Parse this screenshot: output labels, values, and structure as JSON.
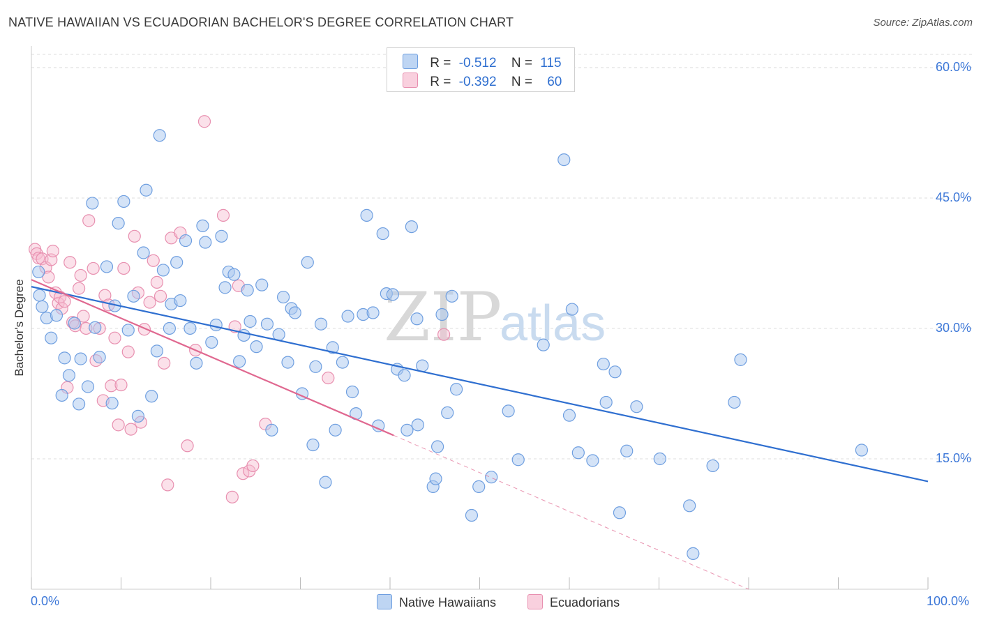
{
  "header": {
    "title": "NATIVE HAWAIIAN VS ECUADORIAN BACHELOR'S DEGREE CORRELATION CHART",
    "source": "Source: ZipAtlas.com"
  },
  "colors": {
    "blue_fill": "#a9c8ef",
    "blue_stroke": "#6f9fe0",
    "blue_line": "#2f6fd0",
    "pink_fill": "#f6bcd0",
    "pink_stroke": "#e890b0",
    "pink_line": "#e06890",
    "axis_text": "#3d78d8",
    "grid": "#dddddd"
  },
  "legend_top": {
    "blue": {
      "r_label": "R =",
      "r_value": "-0.512",
      "n_label": "N =",
      "n_value": "115"
    },
    "pink": {
      "r_label": "R =",
      "r_value": "-0.392",
      "n_label": "N =",
      "n_value": "60"
    }
  },
  "legend_bottom": {
    "blue_label": "Native Hawaiians",
    "pink_label": "Ecuadorians"
  },
  "watermark": {
    "zip": "ZIP",
    "atlas": "atlas"
  },
  "chart_data": {
    "type": "scatter",
    "title": "NATIVE HAWAIIAN VS ECUADORIAN BACHELOR'S DEGREE CORRELATION CHART",
    "xlabel": "",
    "ylabel": "Bachelor's Degree",
    "xlim": [
      0,
      100
    ],
    "ylim": [
      0,
      62
    ],
    "x_tick_labels": [
      "0.0%",
      "100.0%"
    ],
    "y_ticks": [
      15,
      30,
      45,
      60
    ],
    "y_tick_labels": [
      "15.0%",
      "30.0%",
      "45.0%",
      "60.0%"
    ],
    "series": [
      {
        "name": "Native Hawaiians",
        "R": -0.512,
        "N": 115,
        "trend": {
          "x": [
            0,
            100
          ],
          "y": [
            34.8,
            12.4
          ],
          "dashed_from": null
        },
        "points": [
          [
            0.8,
            36.5
          ],
          [
            0.9,
            33.8
          ],
          [
            1.2,
            32.5
          ],
          [
            1.7,
            31.2
          ],
          [
            2.2,
            28.9
          ],
          [
            2.8,
            31.5
          ],
          [
            3.4,
            22.3
          ],
          [
            3.7,
            26.6
          ],
          [
            4.2,
            24.6
          ],
          [
            4.8,
            30.6
          ],
          [
            5.3,
            21.3
          ],
          [
            5.5,
            26.5
          ],
          [
            6.3,
            23.3
          ],
          [
            6.8,
            44.4
          ],
          [
            7.1,
            30.1
          ],
          [
            7.6,
            26.7
          ],
          [
            8.4,
            37.1
          ],
          [
            9.0,
            21.4
          ],
          [
            9.3,
            32.6
          ],
          [
            9.7,
            42.1
          ],
          [
            10.3,
            44.6
          ],
          [
            10.8,
            29.8
          ],
          [
            11.4,
            33.7
          ],
          [
            11.9,
            19.9
          ],
          [
            12.5,
            38.7
          ],
          [
            12.8,
            45.9
          ],
          [
            13.4,
            22.2
          ],
          [
            14.0,
            27.4
          ],
          [
            14.3,
            52.2
          ],
          [
            14.7,
            36.7
          ],
          [
            15.4,
            30.0
          ],
          [
            15.6,
            32.8
          ],
          [
            16.2,
            37.6
          ],
          [
            16.6,
            33.2
          ],
          [
            17.2,
            40.1
          ],
          [
            17.7,
            30.0
          ],
          [
            18.4,
            26.0
          ],
          [
            19.1,
            41.8
          ],
          [
            19.4,
            39.9
          ],
          [
            20.1,
            28.4
          ],
          [
            20.6,
            30.4
          ],
          [
            21.2,
            40.6
          ],
          [
            21.6,
            34.7
          ],
          [
            22.0,
            36.5
          ],
          [
            22.6,
            36.2
          ],
          [
            23.2,
            26.2
          ],
          [
            23.7,
            29.2
          ],
          [
            24.1,
            34.4
          ],
          [
            24.4,
            30.8
          ],
          [
            25.1,
            27.9
          ],
          [
            25.7,
            35.0
          ],
          [
            26.3,
            30.5
          ],
          [
            26.8,
            18.3
          ],
          [
            27.6,
            29.3
          ],
          [
            28.1,
            33.6
          ],
          [
            28.6,
            26.1
          ],
          [
            29.0,
            32.3
          ],
          [
            29.4,
            31.8
          ],
          [
            30.2,
            22.5
          ],
          [
            30.8,
            37.6
          ],
          [
            31.4,
            16.6
          ],
          [
            31.7,
            25.6
          ],
          [
            32.3,
            30.5
          ],
          [
            32.8,
            12.3
          ],
          [
            33.6,
            27.8
          ],
          [
            33.9,
            18.3
          ],
          [
            34.7,
            26.1
          ],
          [
            35.3,
            31.4
          ],
          [
            35.8,
            22.7
          ],
          [
            36.2,
            20.2
          ],
          [
            37.0,
            31.6
          ],
          [
            37.4,
            43.0
          ],
          [
            38.1,
            31.8
          ],
          [
            38.7,
            18.8
          ],
          [
            39.2,
            40.9
          ],
          [
            39.6,
            34.0
          ],
          [
            40.3,
            33.9
          ],
          [
            40.8,
            25.3
          ],
          [
            41.6,
            24.6
          ],
          [
            41.9,
            18.3
          ],
          [
            42.4,
            41.7
          ],
          [
            43.0,
            31.1
          ],
          [
            43.1,
            18.9
          ],
          [
            43.6,
            25.7
          ],
          [
            44.8,
            11.8
          ],
          [
            45.1,
            12.7
          ],
          [
            45.3,
            16.4
          ],
          [
            45.8,
            31.6
          ],
          [
            46.4,
            20.3
          ],
          [
            46.9,
            33.7
          ],
          [
            47.4,
            23.0
          ],
          [
            49.1,
            8.5
          ],
          [
            49.9,
            11.8
          ],
          [
            51.3,
            12.9
          ],
          [
            53.2,
            20.5
          ],
          [
            54.3,
            14.9
          ],
          [
            57.1,
            28.1
          ],
          [
            59.4,
            49.4
          ],
          [
            60.0,
            20.0
          ],
          [
            60.3,
            32.2
          ],
          [
            61.0,
            15.7
          ],
          [
            62.6,
            14.8
          ],
          [
            63.8,
            25.9
          ],
          [
            64.1,
            21.5
          ],
          [
            65.1,
            25.0
          ],
          [
            65.6,
            8.8
          ],
          [
            66.4,
            15.9
          ],
          [
            67.5,
            21.0
          ],
          [
            70.1,
            15.0
          ],
          [
            73.4,
            9.6
          ],
          [
            73.8,
            4.1
          ],
          [
            76.0,
            14.2
          ],
          [
            78.4,
            21.5
          ],
          [
            79.1,
            26.4
          ],
          [
            92.6,
            16.0
          ]
        ]
      },
      {
        "name": "Ecuadorians",
        "R": -0.392,
        "N": 60,
        "trend": {
          "x": [
            0,
            40.4
          ],
          "y": [
            35.6,
            17.7
          ],
          "dashed_to": {
            "x": 80.0,
            "y": 0
          }
        },
        "points": [
          [
            0.4,
            39.1
          ],
          [
            0.6,
            38.6
          ],
          [
            0.8,
            38.1
          ],
          [
            1.2,
            38.0
          ],
          [
            1.6,
            37.0
          ],
          [
            1.9,
            35.9
          ],
          [
            2.2,
            37.9
          ],
          [
            2.4,
            38.9
          ],
          [
            2.7,
            34.1
          ],
          [
            3.0,
            32.9
          ],
          [
            3.2,
            33.6
          ],
          [
            3.4,
            32.3
          ],
          [
            3.7,
            33.1
          ],
          [
            4.0,
            23.2
          ],
          [
            4.3,
            37.6
          ],
          [
            4.6,
            30.7
          ],
          [
            4.9,
            30.3
          ],
          [
            5.3,
            34.6
          ],
          [
            5.5,
            36.1
          ],
          [
            5.8,
            31.4
          ],
          [
            6.1,
            30.0
          ],
          [
            6.4,
            42.4
          ],
          [
            6.9,
            36.9
          ],
          [
            7.2,
            26.3
          ],
          [
            7.6,
            30.0
          ],
          [
            8.0,
            21.7
          ],
          [
            8.2,
            33.8
          ],
          [
            8.6,
            32.7
          ],
          [
            8.9,
            23.4
          ],
          [
            9.3,
            28.9
          ],
          [
            9.7,
            18.9
          ],
          [
            10.0,
            23.5
          ],
          [
            10.3,
            36.9
          ],
          [
            10.8,
            27.3
          ],
          [
            11.1,
            18.4
          ],
          [
            11.5,
            40.6
          ],
          [
            11.9,
            34.1
          ],
          [
            12.2,
            19.2
          ],
          [
            12.6,
            29.9
          ],
          [
            13.2,
            33.0
          ],
          [
            13.6,
            37.8
          ],
          [
            14.0,
            35.3
          ],
          [
            14.4,
            33.7
          ],
          [
            14.8,
            26.0
          ],
          [
            15.2,
            12.0
          ],
          [
            15.6,
            40.4
          ],
          [
            16.6,
            41.0
          ],
          [
            17.4,
            16.5
          ],
          [
            18.3,
            27.5
          ],
          [
            19.3,
            53.8
          ],
          [
            21.4,
            43.0
          ],
          [
            22.4,
            10.6
          ],
          [
            22.7,
            30.2
          ],
          [
            23.1,
            34.9
          ],
          [
            23.6,
            13.3
          ],
          [
            24.3,
            13.6
          ],
          [
            24.7,
            14.2
          ],
          [
            26.1,
            19.0
          ],
          [
            33.1,
            24.3
          ],
          [
            46.0,
            29.3
          ]
        ]
      }
    ]
  }
}
